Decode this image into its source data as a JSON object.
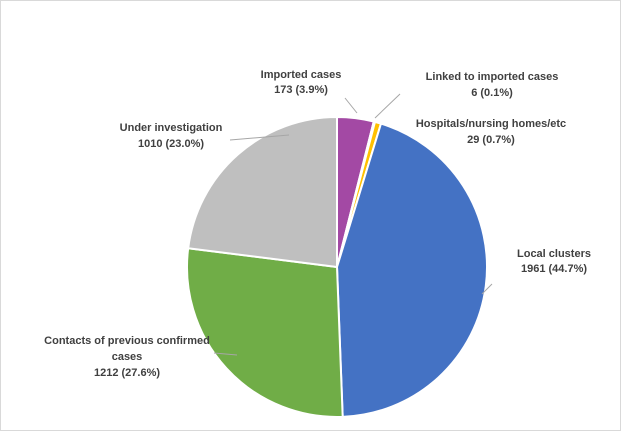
{
  "chart_data": {
    "type": "pie",
    "slices": [
      {
        "name": "Local clusters",
        "value": 1961,
        "percent": "44.7%",
        "color": "#4472c4",
        "count_label": "1961 (44.7%)"
      },
      {
        "name": "Contacts of previous confirmed cases",
        "name_lines": [
          "Contacts of previous confirmed",
          "cases"
        ],
        "value": 1212,
        "percent": "27.6%",
        "color": "#70ad47",
        "count_label": "1212 (27.6%)"
      },
      {
        "name": "Under investigation",
        "value": 1010,
        "percent": "23.0%",
        "color": "#bfbfbf",
        "count_label": "1010 (23.0%)"
      },
      {
        "name": "Imported cases",
        "value": 173,
        "percent": "3.9%",
        "color": "#a349a4",
        "count_label": "173 (3.9%)"
      },
      {
        "name": "Linked to imported cases",
        "value": 6,
        "percent": "0.1%",
        "color": "#ed7d31",
        "count_label": "6 (0.1%)"
      },
      {
        "name": "Hospitals/nursing  homes/etc",
        "value": 29,
        "percent": "0.7%",
        "color": "#ffc000",
        "count_label": "29 (0.7%)"
      }
    ]
  }
}
